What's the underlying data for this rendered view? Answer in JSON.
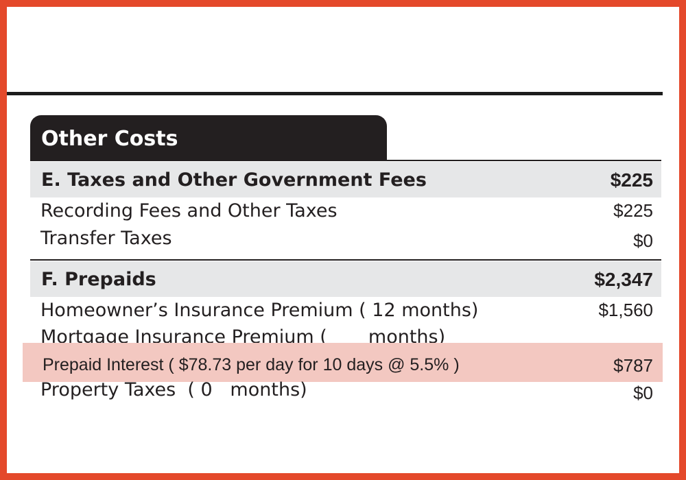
{
  "colors": {
    "frame": "#e4492b",
    "tab_background": "#231f20",
    "section_header_background": "#e6e7e8",
    "highlight": "#f3c8c1"
  },
  "tab_title": "Other Costs",
  "section_e": {
    "title": "E.  Taxes and Other Government Fees",
    "total": "$225",
    "rows": [
      {
        "label": "Recording Fees and Other Taxes",
        "amount": "$225"
      },
      {
        "label": "Transfer Taxes",
        "amount": "$0"
      }
    ]
  },
  "section_f": {
    "title": "F.  Prepaids",
    "total": "$2,347",
    "rows": [
      {
        "label": "Homeowner’s Insurance Premium ( 12 months)",
        "amount": "$1,560"
      },
      {
        "label": "Mortgage Insurance Premium (       months)",
        "amount": ""
      },
      {
        "label": "Prepaid Interest ( $78.73 per day for 10 days @ 5.5% )",
        "amount": "$787"
      },
      {
        "label": "Property Taxes  ( 0   months)",
        "amount": "$0"
      }
    ]
  }
}
